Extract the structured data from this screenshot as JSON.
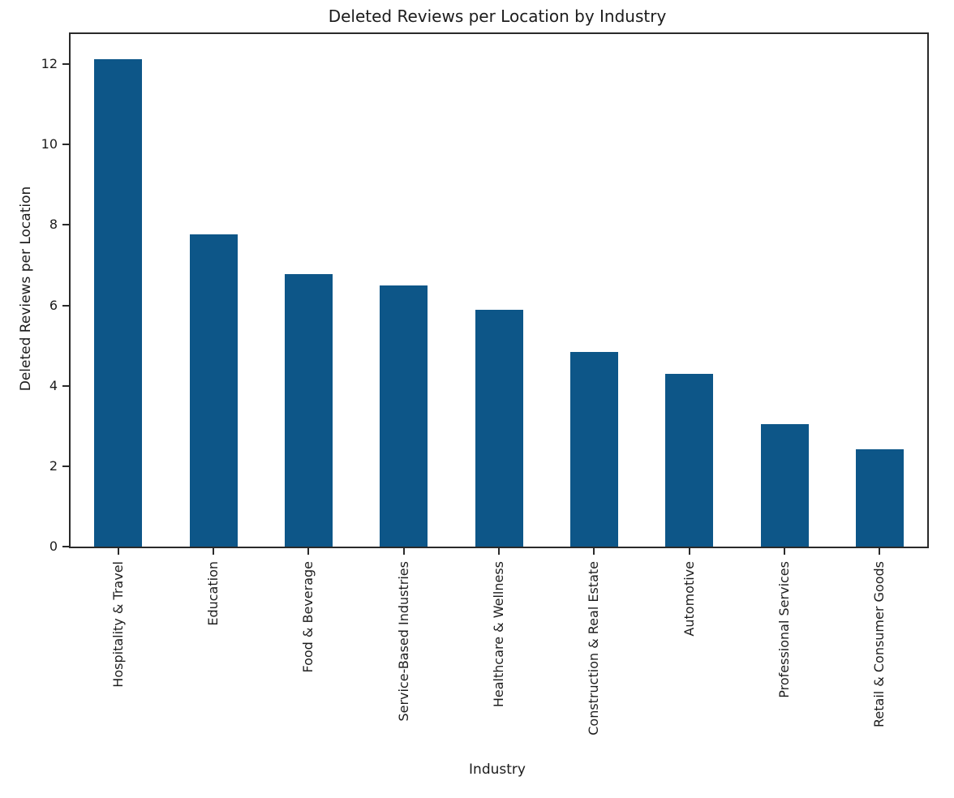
{
  "chart_data": {
    "type": "bar",
    "title": "Deleted Reviews per Location by Industry",
    "xlabel": "Industry",
    "ylabel": "Deleted Reviews per Location",
    "categories": [
      "Hospitality & Travel",
      "Education",
      "Food & Beverage",
      "Service-Based Industries",
      "Healthcare & Wellness",
      "Construction & Real Estate",
      "Automotive",
      "Professional Services",
      "Retail & Consumer Goods"
    ],
    "values": [
      12.12,
      7.76,
      6.78,
      6.5,
      5.9,
      4.84,
      4.3,
      3.04,
      2.43
    ],
    "yticks": [
      0,
      2,
      4,
      6,
      8,
      10,
      12
    ],
    "ylim": [
      0,
      12.75
    ],
    "grid": false,
    "legend": false,
    "bar_color": "#0d5688",
    "bar_width_fraction": 0.5
  },
  "colors": {
    "background": "#ffffff",
    "text": "#1c1c1c",
    "spine": "#2a2a2a"
  }
}
